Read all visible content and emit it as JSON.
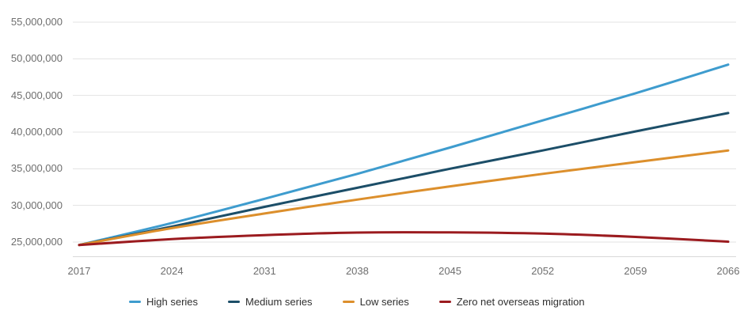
{
  "chart_data": {
    "type": "line",
    "title": "",
    "xlabel": "",
    "ylabel": "",
    "grid": "horizontal",
    "legend_position": "bottom",
    "x_range": [
      2017,
      2066
    ],
    "ylim": [
      23000000,
      55000000
    ],
    "categories": [
      2017,
      2024,
      2031,
      2038,
      2045,
      2052,
      2059,
      2066
    ],
    "x_tick_labels": [
      "2017",
      "2024",
      "2031",
      "2038",
      "2045",
      "2052",
      "2059",
      "2066"
    ],
    "y_ticks": [
      {
        "label": "55,000,000",
        "value": 55000000
      },
      {
        "label": "50,000,000",
        "value": 50000000
      },
      {
        "label": "45,000,000",
        "value": 45000000
      },
      {
        "label": "40,000,000",
        "value": 40000000
      },
      {
        "label": "35,000,000",
        "value": 35000000
      },
      {
        "label": "30,000,000",
        "value": 30000000
      },
      {
        "label": "25,000,000",
        "value": 25000000
      }
    ],
    "series": [
      {
        "name": "High series",
        "color": "#3e9cce",
        "values": [
          24600000,
          27600000,
          30900000,
          34300000,
          37900000,
          41600000,
          45300000,
          49200000
        ]
      },
      {
        "name": "Medium series",
        "color": "#1c4e68",
        "values": [
          24600000,
          27100000,
          29800000,
          32400000,
          35000000,
          37500000,
          40100000,
          42600000
        ]
      },
      {
        "name": "Low series",
        "color": "#dc8f2c",
        "values": [
          24600000,
          26900000,
          28900000,
          30800000,
          32600000,
          34300000,
          35900000,
          37500000
        ]
      },
      {
        "name": "Zero net overseas migration",
        "color": "#9b1b1f",
        "values": [
          24600000,
          25400000,
          25950000,
          26300000,
          26320000,
          26150000,
          25700000,
          25050000
        ]
      }
    ],
    "colors": {
      "gridline": "#e3e3e3",
      "axis_baseline": "#d9d9d9",
      "axis_text": "#6e6e6e",
      "legend_text": "#2f2f2f",
      "background": "#ffffff"
    }
  }
}
